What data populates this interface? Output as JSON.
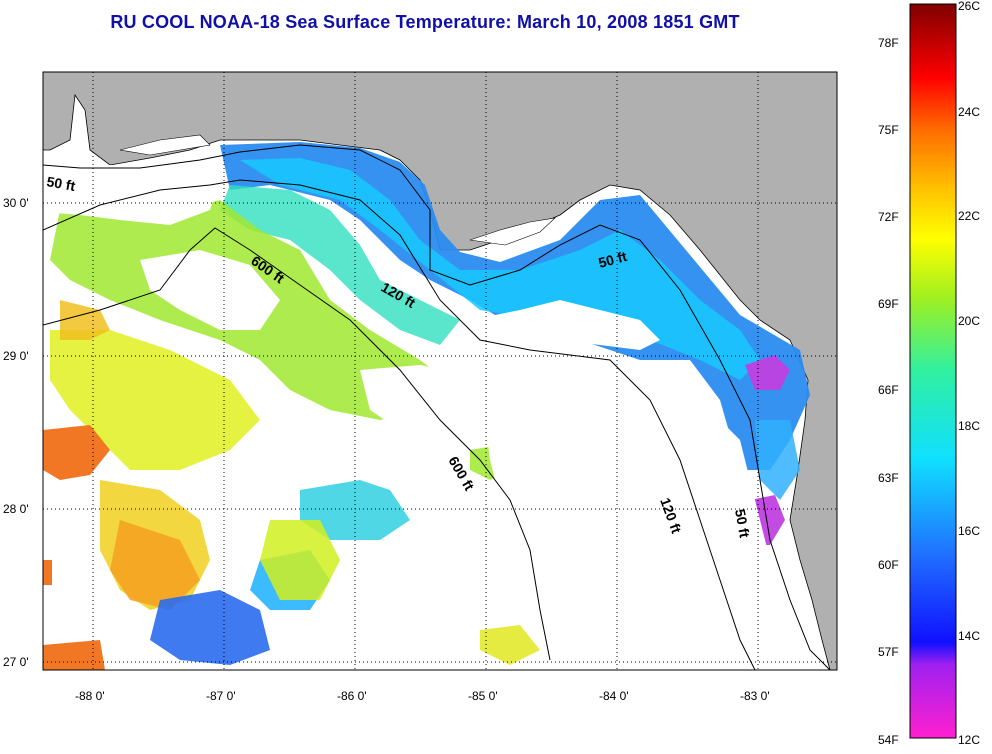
{
  "title": "RU COOL  NOAA-18  Sea Surface Temperature:  March 10, 2008 1851 GMT",
  "longitudes": [
    "-88 0'",
    "-87 0'",
    "-86 0'",
    "-85 0'",
    "-84 0'",
    "-83 0'"
  ],
  "latitudes": [
    "30 0'",
    "29 0'",
    "28 0'",
    "27 0'"
  ],
  "contours": [
    "50 ft",
    "600 ft",
    "120 ft",
    "50 ft",
    "600 ft",
    "120 ft",
    "50 ft"
  ],
  "colorbar": {
    "fahrenheit": [
      "78F",
      "75F",
      "72F",
      "69F",
      "66F",
      "63F",
      "60F",
      "57F",
      "54F"
    ],
    "celsius": [
      "26C",
      "24C",
      "22C",
      "20C",
      "18C",
      "16C",
      "14C",
      "12C"
    ]
  },
  "colors": {
    "land": "#b0b0b0",
    "title": "#1010a8",
    "background": "#ffffff"
  }
}
